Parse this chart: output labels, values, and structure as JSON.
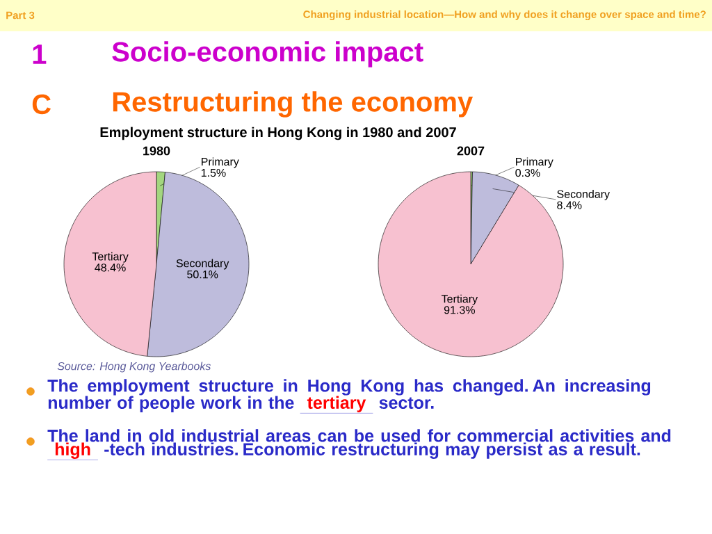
{
  "chart_data": [
    {
      "type": "pie",
      "title": "Employment structure in Hong Kong in 1980 and 2007",
      "subtitle": "1980",
      "categories": [
        "Primary",
        "Secondary",
        "Tertiary"
      ],
      "values": [
        1.5,
        50.1,
        48.4
      ],
      "value_labels": [
        "1.5%",
        "50.1%",
        "48.4%"
      ],
      "colors": [
        "#a3d67f",
        "#bebcdc",
        "#f7c1d0"
      ],
      "annotations": [
        "Part 3",
        "Changing industrial location—How and why does it change over space and time?",
        "1",
        "Socio-economic impact",
        "C",
        "Restructuring the economy",
        "Source: Hong Kong Yearbooks",
        "The employment structure in Hong Kong has changed. An increasing number of people work in the",
        "tertiary",
        "sector.",
        "The land in old industrial areas can be used for commercial activities and",
        "high",
        "-tech industries. Economic restructuring may persist as a result."
      ]
    },
    {
      "type": "pie",
      "subtitle": "2007",
      "categories": [
        "Primary",
        "Secondary",
        "Tertiary"
      ],
      "values": [
        0.3,
        8.4,
        91.3
      ],
      "value_labels": [
        "0.3%",
        "8.4%",
        "91.3%"
      ],
      "colors": [
        "#a3d67f",
        "#bebcdc",
        "#f7c1d0"
      ]
    }
  ]
}
